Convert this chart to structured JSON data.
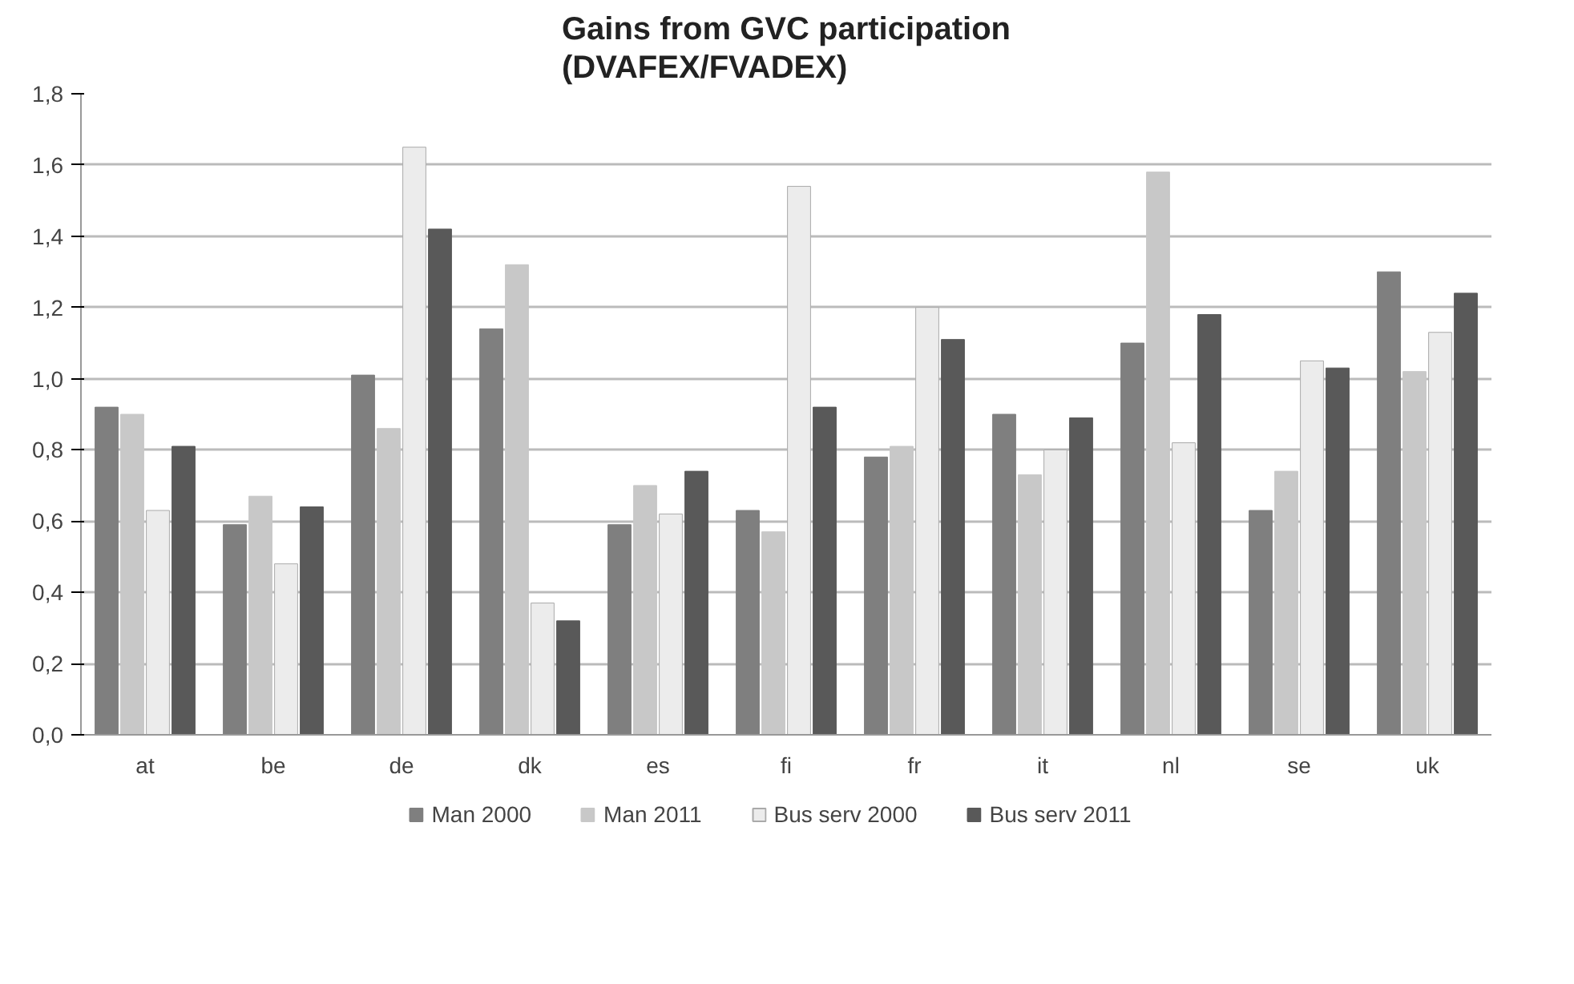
{
  "chart_data": {
    "type": "bar",
    "title": "Gains from GVC participation\n(DVAFEX/FVADEX)",
    "categories": [
      "at",
      "be",
      "de",
      "dk",
      "es",
      "fi",
      "fr",
      "it",
      "nl",
      "se",
      "uk"
    ],
    "series": [
      {
        "name": "Man 2000",
        "color": "#7f7f7f",
        "values": [
          0.92,
          0.59,
          1.01,
          1.14,
          0.59,
          0.63,
          0.78,
          0.9,
          1.1,
          0.63,
          1.3
        ]
      },
      {
        "name": "Man 2011",
        "color": "#c8c8c8",
        "values": [
          0.9,
          0.67,
          0.86,
          1.32,
          0.7,
          0.57,
          0.81,
          0.73,
          1.58,
          0.74,
          1.02
        ]
      },
      {
        "name": "Bus serv 2000",
        "color": "#ececec",
        "values": [
          0.63,
          0.48,
          1.65,
          0.37,
          0.62,
          1.54,
          1.2,
          0.8,
          0.82,
          1.05,
          1.13
        ]
      },
      {
        "name": "Bus serv 2011",
        "color": "#595959",
        "values": [
          0.81,
          0.64,
          1.42,
          0.32,
          0.74,
          0.92,
          1.11,
          0.89,
          1.18,
          1.03,
          1.24
        ]
      }
    ],
    "ylim": [
      0,
      1.8
    ],
    "yticks": [
      {
        "value": 0,
        "label": "0,0"
      },
      {
        "value": 0.2,
        "label": "0,2"
      },
      {
        "value": 0.4,
        "label": "0,4"
      },
      {
        "value": 0.6,
        "label": "0,6"
      },
      {
        "value": 0.8,
        "label": "0,8"
      },
      {
        "value": 1.0,
        "label": "1,0"
      },
      {
        "value": 1.2,
        "label": "1,2"
      },
      {
        "value": 1.4,
        "label": "1,4"
      },
      {
        "value": 1.6,
        "label": "1,6"
      },
      {
        "value": 1.8,
        "label": "1,8"
      }
    ],
    "grid": "y",
    "legend": "bottom"
  }
}
